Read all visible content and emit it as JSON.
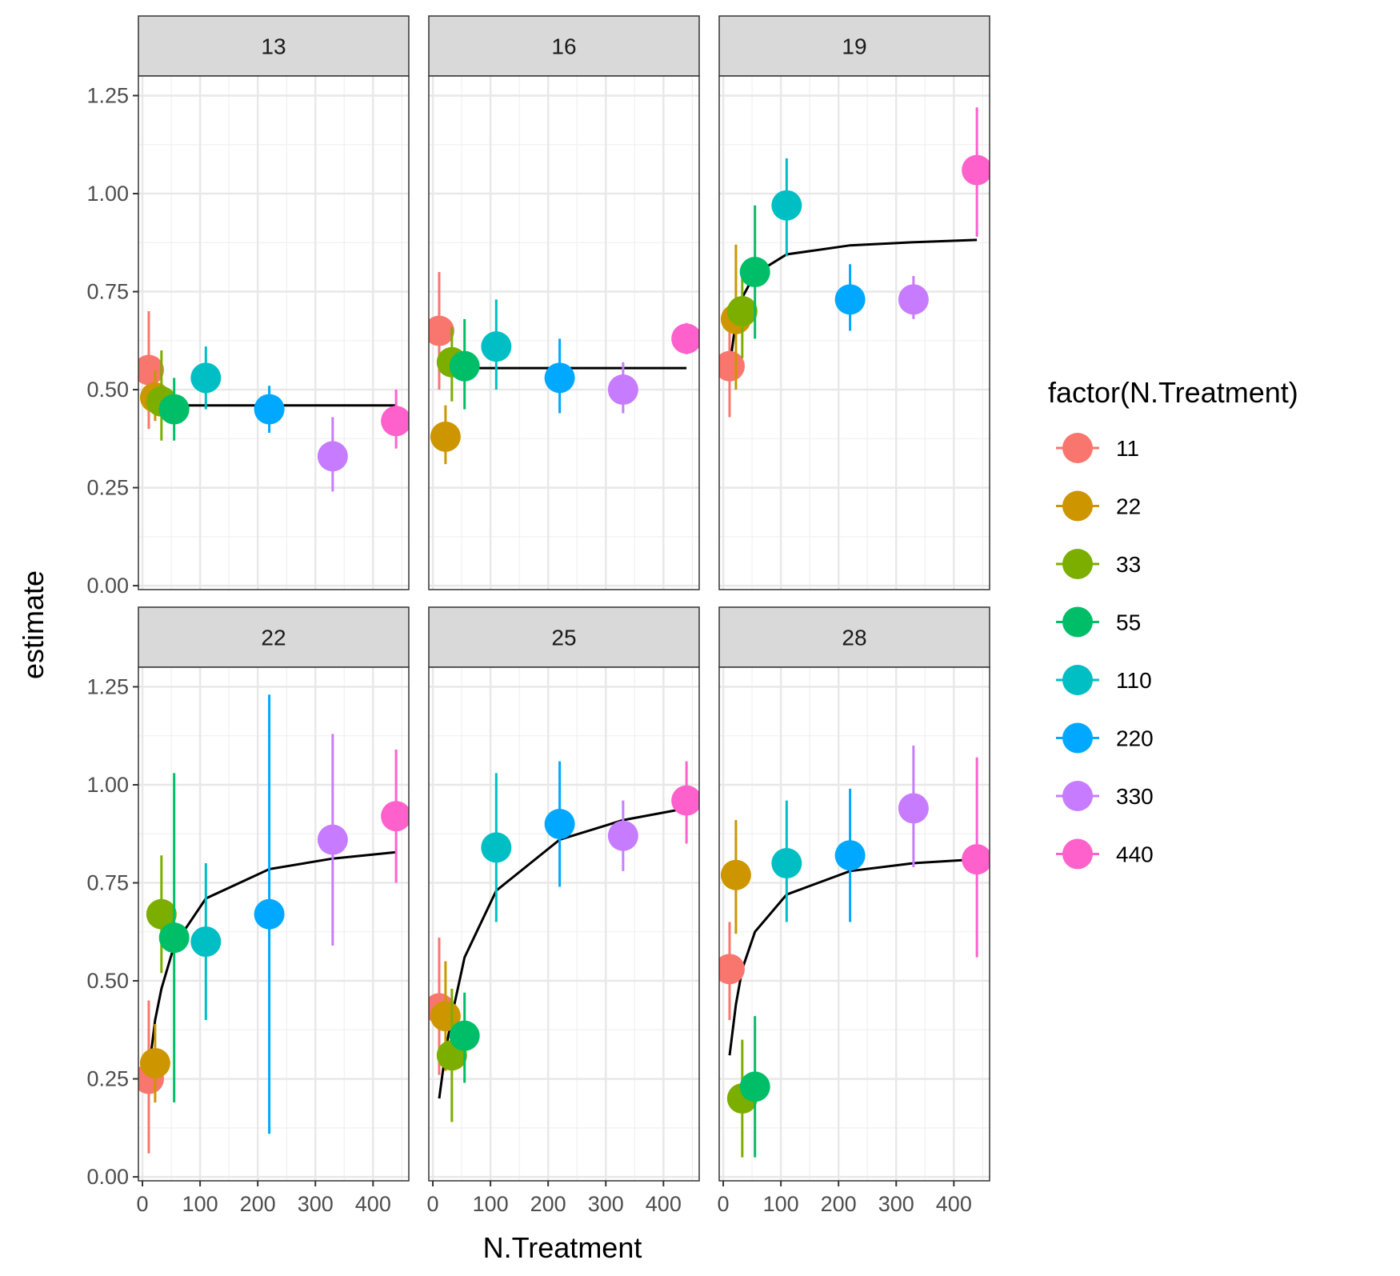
{
  "chart_data": {
    "type": "scatter",
    "subtype": "faceted point-range with fitted curve",
    "title": "",
    "xlabel": "N.Treatment",
    "ylabel": "estimate",
    "xlim": [
      -7,
      462
    ],
    "ylim": [
      -0.01,
      1.3
    ],
    "x_ticks": [
      0,
      100,
      200,
      300,
      400
    ],
    "x_tick_labels": [
      "0",
      "100",
      "200",
      "300",
      "400"
    ],
    "y_ticks": [
      0,
      0.25,
      0.5,
      0.75,
      1.0,
      1.25
    ],
    "y_tick_labels": [
      "0.00",
      "0.25",
      "0.50",
      "0.75",
      "1.00",
      "1.25"
    ],
    "grid": true,
    "legend": {
      "title": "factor(N.Treatment)",
      "position": "right",
      "entries": [
        {
          "label": "11",
          "color": "#F8766D"
        },
        {
          "label": "22",
          "color": "#CD9600"
        },
        {
          "label": "33",
          "color": "#7CAE00"
        },
        {
          "label": "55",
          "color": "#00BE67"
        },
        {
          "label": "110",
          "color": "#00BFC4"
        },
        {
          "label": "220",
          "color": "#00A9FF"
        },
        {
          "label": "330",
          "color": "#C77CFF"
        },
        {
          "label": "440",
          "color": "#FF61CC"
        }
      ]
    },
    "facets": [
      {
        "label": "13",
        "points": [
          {
            "x": 11,
            "y": 0.55,
            "ymin": 0.4,
            "ymax": 0.7
          },
          {
            "x": 22,
            "y": 0.48,
            "ymin": 0.42,
            "ymax": 0.55
          },
          {
            "x": 33,
            "y": 0.47,
            "ymin": 0.37,
            "ymax": 0.6
          },
          {
            "x": 55,
            "y": 0.45,
            "ymin": 0.37,
            "ymax": 0.53
          },
          {
            "x": 110,
            "y": 0.53,
            "ymin": 0.45,
            "ymax": 0.61
          },
          {
            "x": 220,
            "y": 0.45,
            "ymin": 0.39,
            "ymax": 0.51
          },
          {
            "x": 330,
            "y": 0.33,
            "ymin": 0.24,
            "ymax": 0.43
          },
          {
            "x": 440,
            "y": 0.42,
            "ymin": 0.35,
            "ymax": 0.5
          }
        ],
        "fit": {
          "x": [
            11,
            440
          ],
          "y": [
            0.46,
            0.46
          ]
        }
      },
      {
        "label": "16",
        "points": [
          {
            "x": 11,
            "y": 0.65,
            "ymin": 0.5,
            "ymax": 0.8
          },
          {
            "x": 22,
            "y": 0.38,
            "ymin": 0.31,
            "ymax": 0.46
          },
          {
            "x": 33,
            "y": 0.57,
            "ymin": 0.47,
            "ymax": 0.66
          },
          {
            "x": 55,
            "y": 0.56,
            "ymin": 0.45,
            "ymax": 0.68
          },
          {
            "x": 110,
            "y": 0.61,
            "ymin": 0.5,
            "ymax": 0.73
          },
          {
            "x": 220,
            "y": 0.53,
            "ymin": 0.44,
            "ymax": 0.63
          },
          {
            "x": 330,
            "y": 0.5,
            "ymin": 0.44,
            "ymax": 0.57
          },
          {
            "x": 440,
            "y": 0.63,
            "ymin": 0.59,
            "ymax": 0.67
          }
        ],
        "fit": {
          "x": [
            11,
            440
          ],
          "y": [
            0.555,
            0.555
          ]
        }
      },
      {
        "label": "19",
        "points": [
          {
            "x": 11,
            "y": 0.56,
            "ymin": 0.43,
            "ymax": 0.66
          },
          {
            "x": 22,
            "y": 0.68,
            "ymin": 0.5,
            "ymax": 0.87
          },
          {
            "x": 33,
            "y": 0.7,
            "ymin": 0.58,
            "ymax": 0.8
          },
          {
            "x": 55,
            "y": 0.8,
            "ymin": 0.63,
            "ymax": 0.97
          },
          {
            "x": 110,
            "y": 0.97,
            "ymin": 0.84,
            "ymax": 1.09
          },
          {
            "x": 220,
            "y": 0.73,
            "ymin": 0.65,
            "ymax": 0.82
          },
          {
            "x": 330,
            "y": 0.73,
            "ymin": 0.68,
            "ymax": 0.79
          },
          {
            "x": 440,
            "y": 1.06,
            "ymin": 0.89,
            "ymax": 1.22
          }
        ],
        "fit": {
          "x": [
            11,
            22,
            33,
            55,
            110,
            220,
            330,
            440
          ],
          "y": [
            0.555,
            0.68,
            0.735,
            0.795,
            0.845,
            0.868,
            0.876,
            0.882
          ]
        }
      },
      {
        "label": "22",
        "points": [
          {
            "x": 11,
            "y": 0.25,
            "ymin": 0.06,
            "ymax": 0.45
          },
          {
            "x": 22,
            "y": 0.29,
            "ymin": 0.19,
            "ymax": 0.39
          },
          {
            "x": 33,
            "y": 0.67,
            "ymin": 0.52,
            "ymax": 0.82
          },
          {
            "x": 55,
            "y": 0.61,
            "ymin": 0.19,
            "ymax": 1.03
          },
          {
            "x": 110,
            "y": 0.6,
            "ymin": 0.4,
            "ymax": 0.8
          },
          {
            "x": 220,
            "y": 0.67,
            "ymin": 0.11,
            "ymax": 1.23
          },
          {
            "x": 330,
            "y": 0.86,
            "ymin": 0.59,
            "ymax": 1.13
          },
          {
            "x": 440,
            "y": 0.92,
            "ymin": 0.75,
            "ymax": 1.09
          }
        ],
        "fit": {
          "x": [
            11,
            22,
            33,
            55,
            110,
            220,
            330,
            440
          ],
          "y": [
            0.27,
            0.4,
            0.48,
            0.59,
            0.71,
            0.785,
            0.812,
            0.828
          ]
        }
      },
      {
        "label": "25",
        "points": [
          {
            "x": 11,
            "y": 0.43,
            "ymin": 0.26,
            "ymax": 0.61
          },
          {
            "x": 22,
            "y": 0.41,
            "ymin": 0.27,
            "ymax": 0.55
          },
          {
            "x": 33,
            "y": 0.31,
            "ymin": 0.14,
            "ymax": 0.48
          },
          {
            "x": 55,
            "y": 0.36,
            "ymin": 0.24,
            "ymax": 0.47
          },
          {
            "x": 110,
            "y": 0.84,
            "ymin": 0.65,
            "ymax": 1.03
          },
          {
            "x": 220,
            "y": 0.9,
            "ymin": 0.74,
            "ymax": 1.06
          },
          {
            "x": 330,
            "y": 0.87,
            "ymin": 0.78,
            "ymax": 0.96
          },
          {
            "x": 440,
            "y": 0.96,
            "ymin": 0.85,
            "ymax": 1.06
          }
        ],
        "fit": {
          "x": [
            11,
            22,
            33,
            55,
            110,
            220,
            330,
            440
          ],
          "y": [
            0.2,
            0.32,
            0.41,
            0.56,
            0.73,
            0.86,
            0.91,
            0.94
          ]
        }
      },
      {
        "label": "28",
        "points": [
          {
            "x": 11,
            "y": 0.53,
            "ymin": 0.4,
            "ymax": 0.65
          },
          {
            "x": 22,
            "y": 0.77,
            "ymin": 0.62,
            "ymax": 0.91
          },
          {
            "x": 33,
            "y": 0.2,
            "ymin": 0.05,
            "ymax": 0.35
          },
          {
            "x": 55,
            "y": 0.23,
            "ymin": 0.05,
            "ymax": 0.41
          },
          {
            "x": 110,
            "y": 0.8,
            "ymin": 0.65,
            "ymax": 0.96
          },
          {
            "x": 220,
            "y": 0.82,
            "ymin": 0.65,
            "ymax": 0.99
          },
          {
            "x": 330,
            "y": 0.94,
            "ymin": 0.79,
            "ymax": 1.1
          },
          {
            "x": 440,
            "y": 0.81,
            "ymin": 0.56,
            "ymax": 1.07
          }
        ],
        "fit": {
          "x": [
            11,
            22,
            33,
            55,
            110,
            220,
            330,
            440
          ],
          "y": [
            0.31,
            0.44,
            0.53,
            0.625,
            0.72,
            0.78,
            0.8,
            0.81
          ]
        }
      }
    ]
  }
}
